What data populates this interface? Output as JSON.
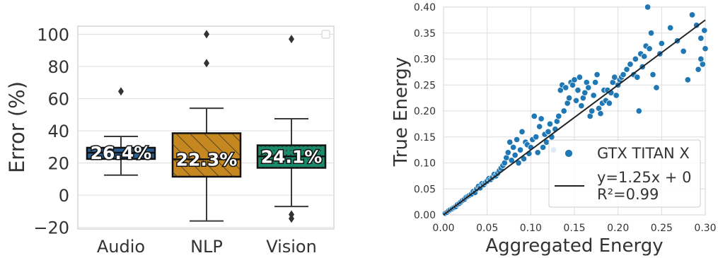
{
  "chart_data": [
    {
      "type": "box",
      "ylabel": "Error (%)",
      "ylim": [
        -21,
        105
      ],
      "yticks": [
        100,
        80,
        60,
        40,
        20,
        0,
        -20
      ],
      "ytick_labels": [
        "100",
        "80",
        "60",
        "40",
        "20",
        "0",
        "−20"
      ],
      "grid": true,
      "legend": "top-right (empty)",
      "categories": [
        "Audio",
        "NLP",
        "Vision"
      ],
      "boxes": [
        {
          "category": "Audio",
          "q1": 22.5,
          "median": 26.4,
          "q3": 29.5,
          "whisker_low": 12.5,
          "whisker_high": 36.5,
          "outliers": [
            64.5
          ],
          "label": "26.4%",
          "color": "#2a5f8f",
          "hatch": "none"
        },
        {
          "category": "NLP",
          "q1": 11.5,
          "median": 22.3,
          "q3": 38.5,
          "whisker_low": -16,
          "whisker_high": 54,
          "outliers": [
            82,
            100
          ],
          "label": "22.3%",
          "color": "#c5871f",
          "hatch": "diagonal"
        },
        {
          "category": "Vision",
          "q1": 17,
          "median": 24.1,
          "q3": 31,
          "whisker_low": -7,
          "whisker_high": 47.5,
          "outliers": [
            97,
            -12,
            -14.5
          ],
          "label": "24.1%",
          "color": "#1a8a6a",
          "hatch": "dots"
        }
      ]
    },
    {
      "type": "scatter",
      "xlabel": "Aggregated Energy",
      "ylabel": "True Energy",
      "xlim": [
        0,
        0.3
      ],
      "ylim": [
        0,
        0.4
      ],
      "xticks": [
        "0.00",
        "0.05",
        "0.10",
        "0.15",
        "0.20",
        "0.25",
        "0.30"
      ],
      "yticks": [
        "0.00",
        "0.05",
        "0.10",
        "0.15",
        "0.20",
        "0.25",
        "0.30",
        "0.35",
        "0.40"
      ],
      "grid": true,
      "legend": "bottom-right",
      "series": [
        {
          "name": "GTX TITAN X",
          "color": "#1f77b4",
          "points": [
            [
              0.002,
              0.003
            ],
            [
              0.004,
              0.005
            ],
            [
              0.006,
              0.008
            ],
            [
              0.008,
              0.01
            ],
            [
              0.01,
              0.012
            ],
            [
              0.012,
              0.014
            ],
            [
              0.014,
              0.016
            ],
            [
              0.016,
              0.02
            ],
            [
              0.018,
              0.022
            ],
            [
              0.02,
              0.025
            ],
            [
              0.022,
              0.028
            ],
            [
              0.024,
              0.03
            ],
            [
              0.026,
              0.034
            ],
            [
              0.028,
              0.036
            ],
            [
              0.03,
              0.038
            ],
            [
              0.032,
              0.04
            ],
            [
              0.034,
              0.045
            ],
            [
              0.036,
              0.043
            ],
            [
              0.038,
              0.05
            ],
            [
              0.04,
              0.055
            ],
            [
              0.042,
              0.052
            ],
            [
              0.044,
              0.06
            ],
            [
              0.046,
              0.058
            ],
            [
              0.048,
              0.062
            ],
            [
              0.05,
              0.065
            ],
            [
              0.052,
              0.07
            ],
            [
              0.054,
              0.068
            ],
            [
              0.056,
              0.072
            ],
            [
              0.058,
              0.078
            ],
            [
              0.06,
              0.075
            ],
            [
              0.062,
              0.08
            ],
            [
              0.064,
              0.085
            ],
            [
              0.066,
              0.09
            ],
            [
              0.068,
              0.095
            ],
            [
              0.07,
              0.1
            ],
            [
              0.072,
              0.11
            ],
            [
              0.074,
              0.12
            ],
            [
              0.076,
              0.14
            ],
            [
              0.078,
              0.105
            ],
            [
              0.08,
              0.13
            ],
            [
              0.082,
              0.115
            ],
            [
              0.084,
              0.145
            ],
            [
              0.086,
              0.1
            ],
            [
              0.088,
              0.125
            ],
            [
              0.09,
              0.16
            ],
            [
              0.092,
              0.108
            ],
            [
              0.094,
              0.14
            ],
            [
              0.096,
              0.135
            ],
            [
              0.098,
              0.118
            ],
            [
              0.1,
              0.13
            ],
            [
              0.102,
              0.145
            ],
            [
              0.104,
              0.19
            ],
            [
              0.106,
              0.15
            ],
            [
              0.108,
              0.12
            ],
            [
              0.11,
              0.17
            ],
            [
              0.112,
              0.185
            ],
            [
              0.114,
              0.13
            ],
            [
              0.116,
              0.155
            ],
            [
              0.118,
              0.14
            ],
            [
              0.12,
              0.16
            ],
            [
              0.122,
              0.175
            ],
            [
              0.124,
              0.15
            ],
            [
              0.126,
              0.125
            ],
            [
              0.128,
              0.165
            ],
            [
              0.13,
              0.18
            ],
            [
              0.132,
              0.19
            ],
            [
              0.134,
              0.24
            ],
            [
              0.136,
              0.25
            ],
            [
              0.138,
              0.2
            ],
            [
              0.14,
              0.245
            ],
            [
              0.142,
              0.215
            ],
            [
              0.144,
              0.225
            ],
            [
              0.146,
              0.255
            ],
            [
              0.148,
              0.25
            ],
            [
              0.15,
              0.26
            ],
            [
              0.152,
              0.22
            ],
            [
              0.154,
              0.24
            ],
            [
              0.156,
              0.265
            ],
            [
              0.158,
              0.21
            ],
            [
              0.16,
              0.225
            ],
            [
              0.162,
              0.235
            ],
            [
              0.164,
              0.255
            ],
            [
              0.166,
              0.245
            ],
            [
              0.168,
              0.19
            ],
            [
              0.17,
              0.2
            ],
            [
              0.172,
              0.23
            ],
            [
              0.174,
              0.255
            ],
            [
              0.176,
              0.27
            ],
            [
              0.178,
              0.205
            ],
            [
              0.18,
              0.195
            ],
            [
              0.182,
              0.215
            ],
            [
              0.184,
              0.24
            ],
            [
              0.186,
              0.22
            ],
            [
              0.188,
              0.24
            ],
            [
              0.19,
              0.215
            ],
            [
              0.192,
              0.235
            ],
            [
              0.194,
              0.255
            ],
            [
              0.196,
              0.265
            ],
            [
              0.198,
              0.23
            ],
            [
              0.2,
              0.25
            ],
            [
              0.202,
              0.26
            ],
            [
              0.204,
              0.265
            ],
            [
              0.206,
              0.27
            ],
            [
              0.21,
              0.28
            ],
            [
              0.214,
              0.29
            ],
            [
              0.218,
              0.27
            ],
            [
              0.22,
              0.3
            ],
            [
              0.222,
              0.265
            ],
            [
              0.224,
              0.2
            ],
            [
              0.226,
              0.31
            ],
            [
              0.228,
              0.285
            ],
            [
              0.23,
              0.305
            ],
            [
              0.232,
              0.325
            ],
            [
              0.234,
              0.4
            ],
            [
              0.236,
              0.32
            ],
            [
              0.238,
              0.35
            ],
            [
              0.24,
              0.27
            ],
            [
              0.244,
              0.245
            ],
            [
              0.248,
              0.31
            ],
            [
              0.25,
              0.33
            ],
            [
              0.26,
              0.36
            ],
            [
              0.268,
              0.335
            ],
            [
              0.275,
              0.315
            ],
            [
              0.28,
              0.26
            ],
            [
              0.285,
              0.385
            ],
            [
              0.29,
              0.365
            ],
            [
              0.292,
              0.28
            ],
            [
              0.295,
              0.34
            ],
            [
              0.297,
              0.29
            ],
            [
              0.299,
              0.355
            ],
            [
              0.3,
              0.32
            ],
            [
              0.295,
              0.3
            ]
          ]
        }
      ],
      "fit": {
        "name": "y=1.25x + 0",
        "r2_label": "R²=0.99",
        "slope": 1.25,
        "intercept": 0,
        "color": "#222222"
      }
    }
  ]
}
